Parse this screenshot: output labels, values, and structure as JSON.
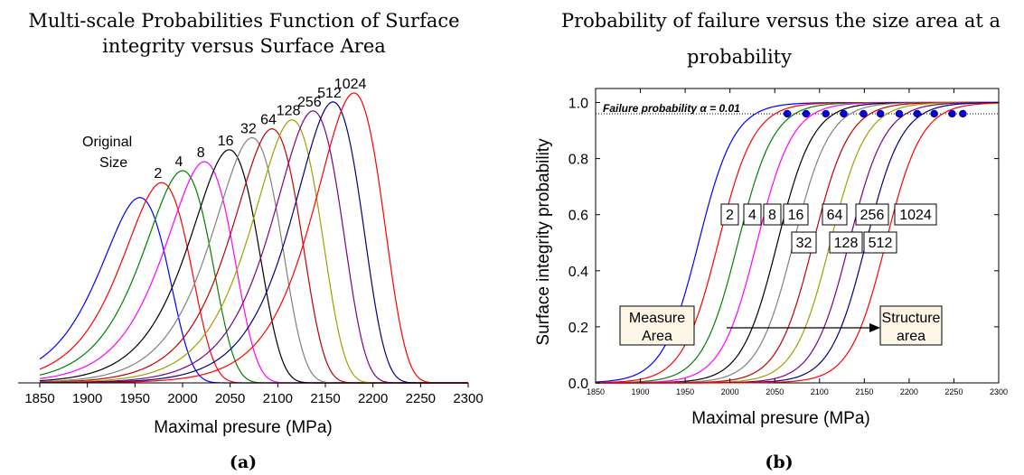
{
  "chart_data": [
    {
      "type": "line",
      "panel_label": "(a)",
      "title": "Multi-scale Probabilities Function of Surface integrity versus Surface Area",
      "title_lines": [
        "Multi-scale Probabilities Function of Surface",
        "integrity versus Surface Area"
      ],
      "xlabel": "Maximal presure (MPa)",
      "ylabel": "",
      "xlim": [
        1850,
        2300
      ],
      "x_ticks": [
        "1850",
        "1900",
        "1950",
        "2000",
        "2050",
        "2100",
        "2150",
        "2200",
        "2250",
        "2300"
      ],
      "y_axis_shown": false,
      "grid": false,
      "series": [
        {
          "name": "Original Size",
          "label_lines": [
            "Original",
            "Size"
          ],
          "color": "#0000ff",
          "peak_x": 1955,
          "peak_height": 0.62
        },
        {
          "name": "2",
          "color": "#ff0000",
          "peak_x": 1978,
          "peak_height": 0.67
        },
        {
          "name": "4",
          "color": "#008000",
          "peak_x": 2000,
          "peak_height": 0.71
        },
        {
          "name": "8",
          "color": "#ff00ff",
          "peak_x": 2023,
          "peak_height": 0.74
        },
        {
          "name": "16",
          "color": "#000000",
          "peak_x": 2049,
          "peak_height": 0.78
        },
        {
          "name": "32",
          "color": "#808080",
          "peak_x": 2073,
          "peak_height": 0.82
        },
        {
          "name": "64",
          "color": "#c00000",
          "peak_x": 2094,
          "peak_height": 0.85
        },
        {
          "name": "128",
          "color": "#a0a000",
          "peak_x": 2115,
          "peak_height": 0.88
        },
        {
          "name": "256",
          "color": "#800080",
          "peak_x": 2137,
          "peak_height": 0.91
        },
        {
          "name": "512",
          "color": "#000080",
          "peak_x": 2158,
          "peak_height": 0.94
        },
        {
          "name": "1024",
          "color": "#ff0000",
          "peak_x": 2180,
          "peak_height": 0.97
        }
      ]
    },
    {
      "type": "line",
      "panel_label": "(b)",
      "title": "Probability of failure versus the size area at a probability",
      "title_lines": [
        "Probability of failure versus the size area at a",
        "probability"
      ],
      "xlabel": "Maximal presure (MPa)",
      "ylabel": "Surface integrity probability",
      "xlim": [
        1850,
        2300
      ],
      "ylim": [
        0,
        1.05
      ],
      "x_ticks": [
        "1850",
        "1900",
        "1950",
        "2000",
        "2050",
        "2100",
        "2150",
        "2200",
        "2250",
        "2300"
      ],
      "y_ticks": [
        "0.0",
        "0.2",
        "0.4",
        "0.6",
        "0.8",
        "1.0"
      ],
      "grid": false,
      "reference_line": {
        "y": 0.96,
        "style": "dotted",
        "label": "Failure probability α = 0.01"
      },
      "annotations": {
        "measure_area": "Measure Area",
        "measure_area_lines": [
          "Measure",
          "Area"
        ],
        "structure_area": "Structure area",
        "structure_area_lines": [
          "Structure",
          "area"
        ],
        "size_labels_top": [
          "2",
          "4",
          "8",
          "16",
          "64",
          "256",
          "1024"
        ],
        "size_labels_bottom": [
          "32",
          "128",
          "512"
        ]
      },
      "series": [
        {
          "name": "Measure Area",
          "color": "#0000ff",
          "x50": 1965,
          "marker_x": 2064
        },
        {
          "name": "2",
          "color": "#ff0000",
          "x50": 1987,
          "marker_x": 2085
        },
        {
          "name": "4",
          "color": "#008000",
          "x50": 2009,
          "marker_x": 2107
        },
        {
          "name": "8",
          "color": "#ff00ff",
          "x50": 2030,
          "marker_x": 2127
        },
        {
          "name": "16",
          "color": "#000000",
          "x50": 2053,
          "marker_x": 2149
        },
        {
          "name": "32",
          "color": "#808080",
          "x50": 2071,
          "marker_x": 2168
        },
        {
          "name": "64",
          "color": "#c00000",
          "x50": 2093,
          "marker_x": 2189
        },
        {
          "name": "128",
          "color": "#a0a000",
          "x50": 2112,
          "marker_x": 2209
        },
        {
          "name": "256",
          "color": "#800080",
          "x50": 2133,
          "marker_x": 2228
        },
        {
          "name": "512",
          "color": "#000080",
          "x50": 2152,
          "marker_x": 2248
        },
        {
          "name": "1024",
          "color": "#ff0000",
          "x50": 2174,
          "marker_x": 2260
        }
      ]
    }
  ]
}
